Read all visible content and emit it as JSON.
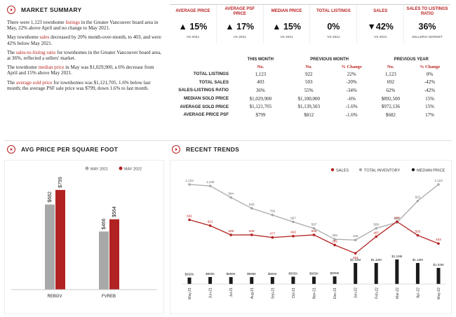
{
  "summary": {
    "title": "MARKET SUMMARY",
    "p1_a": "There were 1,123 townhome ",
    "p1_link": "listings",
    "p1_b": " in the Greater Vancouver board area in May, 22% above April and no change to May 2021.",
    "p2_a": "May townhome ",
    "p2_link": "sales",
    "p2_b": " decreased by 20% month-over-month, to 403, and were 42% below May 2021.",
    "p3_a": "The ",
    "p3_link": "sales-to-listing ratio",
    "p3_b": " for townhomes in the Greater Vancouver board area, at 36%, reflected a sellers' market.",
    "p4_a": "The townhome ",
    "p4_link": "median price",
    "p4_b": " in May was $1,029,900, a 6% decrease from April and 15% above May 2021.",
    "p5_a": "The ",
    "p5_link": "average sold price",
    "p5_b": " for townhomes was $1,121,705, 1.6% below last month; the average PSF sale price was $799, down 1.6% to last month."
  },
  "kpis": [
    {
      "label": "AVERAGE PRICE",
      "value": "▲ 15%",
      "sub": "VS 2021"
    },
    {
      "label": "AVERAGE PSF PRICE",
      "value": "▲ 17%",
      "sub": "VS 2021"
    },
    {
      "label": "MEDIAN PRICE",
      "value": "▲ 15%",
      "sub": "VS 2021"
    },
    {
      "label": "TOTAL LISTINGS",
      "value": "0%",
      "sub": "VS 2021"
    },
    {
      "label": "SALES",
      "value": "▼42%",
      "sub": "VS 2021"
    },
    {
      "label": "SALES TO LISTINGS RATIO",
      "value": "36%",
      "sub": "SELLERS' MARKET"
    }
  ],
  "table": {
    "groups": [
      "THIS MONTH",
      "PREVIOUS MONTH",
      "PREVIOUS YEAR"
    ],
    "sub": [
      "No.",
      "No.",
      "% Change",
      "No.",
      "% Change"
    ],
    "rows": [
      [
        "TOTAL LISTINGS",
        "1,123",
        "922",
        "22%",
        "1,123",
        "0%"
      ],
      [
        "TOTAL SALES",
        "403",
        "503",
        "-20%",
        "692",
        "-42%"
      ],
      [
        "SALES-LISTINGS RATIO",
        "36%",
        "55%",
        "-34%",
        "62%",
        "-42%"
      ],
      [
        "MEDIAN SOLD PRICE",
        "$1,029,900",
        "$1,100,000",
        "-6%",
        "$892,500",
        "15%"
      ],
      [
        "AVERAGE SOLD PRICE",
        "$1,121,705",
        "$1,139,503",
        "-1.6%",
        "$972,136",
        "15%"
      ],
      [
        "AVERAGE PRICE PSF",
        "$799",
        "$812",
        "-1.6%",
        "$682",
        "17%"
      ]
    ]
  },
  "avg_title": "AVG PRICE PER SQUARE FOOT",
  "trends_title": "RECENT TRENDS",
  "colors": {
    "red": "#b22222",
    "gray": "#a8a8a8",
    "black": "#1a1a1a"
  },
  "chart_data": [
    {
      "type": "bar",
      "title": "AVG PRICE PER SQUARE FOOT",
      "categories": [
        "REBGV",
        "FVREB"
      ],
      "series": [
        {
          "name": "MAY 2021",
          "values": [
            682,
            466
          ],
          "labels": [
            "$682",
            "$466"
          ]
        },
        {
          "name": "MAY 2022",
          "values": [
            799,
            564
          ],
          "labels": [
            "$799",
            "$564"
          ]
        }
      ],
      "ylim": [
        0,
        900
      ]
    },
    {
      "type": "line",
      "title": "RECENT TRENDS",
      "legend": [
        "SALES",
        "TOTAL INVENTORY",
        "MEDIAN PRICE"
      ],
      "categories": [
        "May-21",
        "Jun-21",
        "Jul-21",
        "Aug-21",
        "Sep-21",
        "Oct-21",
        "Nov-21",
        "Dec-21",
        "Jan-22",
        "Feb-22",
        "Mar-22",
        "Apr-22",
        "May-22"
      ],
      "inventory": [
        1123,
        1105,
        964,
        833,
        750,
        667,
        587,
        455,
        446,
        589,
        660,
        922,
        1123
      ],
      "inventory_labels": [
        "1,123",
        "1,105",
        "964",
        "833",
        "750",
        "667",
        "587",
        "455",
        "446",
        "589",
        "660",
        "922",
        "1,123"
      ],
      "sales": [
        692,
        621,
        508,
        509,
        477,
        493,
        508,
        385,
        284,
        487,
        670,
        503,
        403
      ],
      "median": [
        893,
        900,
        899,
        899,
        900,
        905,
        905,
        909,
        1100,
        1100,
        1150,
        1100,
        1030
      ],
      "median_labels": [
        "$893K",
        "$900K",
        "$899K",
        "$899K",
        "$900K",
        "$905K",
        "$905K",
        "$909K",
        "$1.10M",
        "$1.10M",
        "$1.15M",
        "$1.10M",
        "$1.03M"
      ]
    }
  ]
}
